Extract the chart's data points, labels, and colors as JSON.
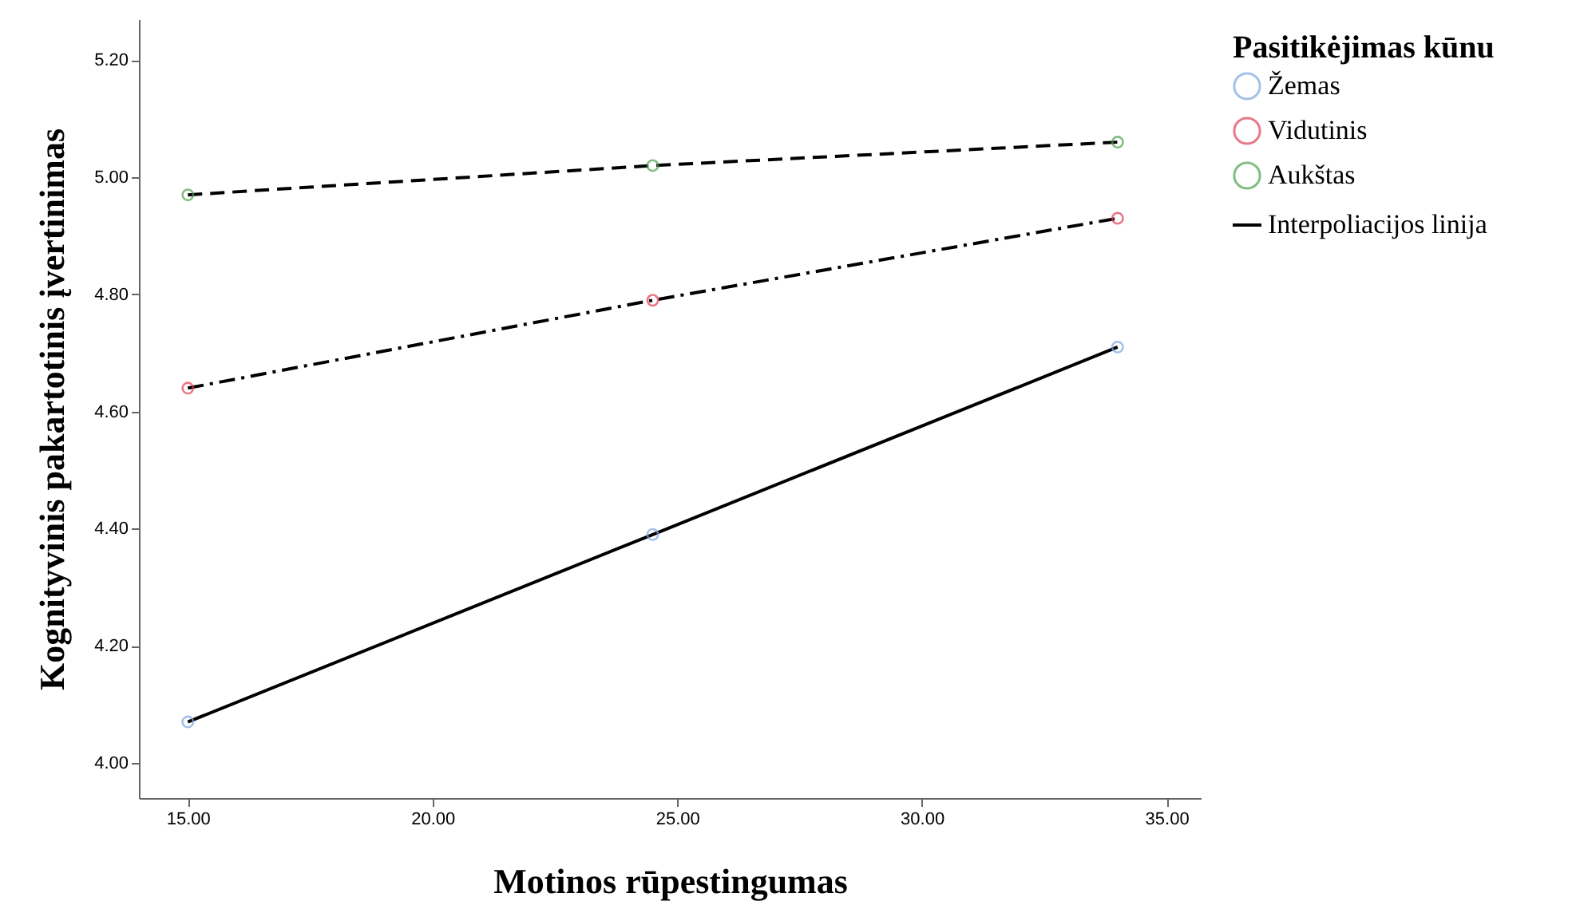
{
  "chart_data": {
    "type": "line",
    "xlabel": "Motinos rūpestingumas",
    "ylabel": "Kognityvinis pakartotinis įvertinimas",
    "legend_title": "Pasitikėjimas kūnu",
    "legend": "right",
    "grid": false,
    "marker": "circle",
    "x": [
      15,
      24.5,
      34
    ],
    "xlim": [
      14,
      35.7
    ],
    "xticks": [
      {
        "value": 15,
        "label": "15.00"
      },
      {
        "value": 20,
        "label": "20.00"
      },
      {
        "value": 25,
        "label": "25.00"
      },
      {
        "value": 30,
        "label": "30.00"
      },
      {
        "value": 35,
        "label": "35.00"
      }
    ],
    "ylim": [
      3.94,
      5.27
    ],
    "yticks": [
      {
        "value": 4.0,
        "label": "4.00"
      },
      {
        "value": 4.2,
        "label": "4.20"
      },
      {
        "value": 4.4,
        "label": "4.40"
      },
      {
        "value": 4.6,
        "label": "4.60"
      },
      {
        "value": 4.8,
        "label": "4.80"
      },
      {
        "value": 5.0,
        "label": "5.00"
      },
      {
        "value": 5.2,
        "label": "5.20"
      }
    ],
    "series": [
      {
        "name": "Žemas",
        "color": "#7fa8e0",
        "line_style": "solid",
        "values": [
          4.07,
          4.39,
          4.71
        ]
      },
      {
        "name": "Vidutinis",
        "color": "#e0405a",
        "line_style": "dashdot",
        "values": [
          4.64,
          4.79,
          4.93
        ]
      },
      {
        "name": "Aukštas",
        "color": "#4ea24e",
        "line_style": "dashed",
        "values": [
          4.97,
          5.02,
          5.06
        ]
      }
    ],
    "annotations": [
      "Interpoliacijos linija"
    ]
  }
}
